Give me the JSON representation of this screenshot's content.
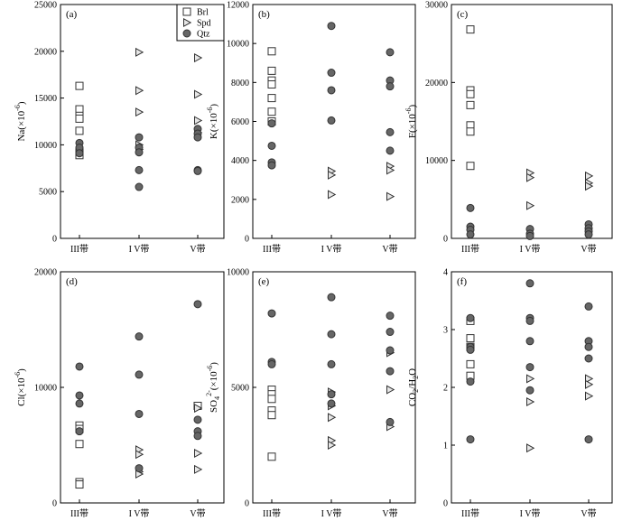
{
  "marker_colors": {
    "stroke": "#333333",
    "fill_square": "#ffffff",
    "fill_triangle": "#e6e6e6",
    "fill_circle": "#666666"
  },
  "legend": [
    {
      "marker": "square",
      "label": "Brl"
    },
    {
      "marker": "triangle",
      "label": "Spd"
    },
    {
      "marker": "circle",
      "label": "Qtz"
    }
  ],
  "chart_data": [
    {
      "type": "scatter",
      "panel_label": "(a)",
      "ylabel": {
        "main": "Na(×10",
        "sup": "-6",
        "tail": ")"
      },
      "categories": [
        "III带",
        "I V带",
        "V带"
      ],
      "ylim": [
        0,
        25000
      ],
      "yticks": [
        0,
        5000,
        10000,
        15000,
        20000,
        25000
      ],
      "series": [
        {
          "name": "Brl",
          "marker": "square",
          "points": [
            [
              0,
              16300
            ],
            [
              0,
              13800
            ],
            [
              0,
              13100
            ],
            [
              0,
              12800
            ],
            [
              0,
              11500
            ],
            [
              0,
              9200
            ],
            [
              0,
              8900
            ]
          ]
        },
        {
          "name": "Spd",
          "marker": "triangle",
          "points": [
            [
              1,
              19900
            ],
            [
              1,
              15800
            ],
            [
              1,
              13500
            ],
            [
              1,
              10000
            ],
            [
              1,
              9500
            ],
            [
              2,
              19300
            ],
            [
              2,
              15400
            ],
            [
              2,
              12600
            ],
            [
              2,
              11300
            ]
          ]
        },
        {
          "name": "Qtz",
          "marker": "circle",
          "points": [
            [
              0,
              10200
            ],
            [
              0,
              9700
            ],
            [
              0,
              9100
            ],
            [
              1,
              10800
            ],
            [
              1,
              9700
            ],
            [
              1,
              9200
            ],
            [
              1,
              7300
            ],
            [
              1,
              5500
            ],
            [
              2,
              11700
            ],
            [
              2,
              11200
            ],
            [
              2,
              10800
            ],
            [
              2,
              7300
            ],
            [
              2,
              7200
            ]
          ]
        }
      ]
    },
    {
      "type": "scatter",
      "panel_label": "(b)",
      "ylabel": {
        "main": "K(×10",
        "sup": "-6",
        "tail": ")"
      },
      "categories": [
        "III带",
        "I V带",
        "V带"
      ],
      "ylim": [
        0,
        12000
      ],
      "yticks": [
        0,
        2000,
        4000,
        6000,
        8000,
        10000,
        12000
      ],
      "series": [
        {
          "name": "Brl",
          "marker": "square",
          "points": [
            [
              0,
              9600
            ],
            [
              0,
              8600
            ],
            [
              0,
              8100
            ],
            [
              0,
              7900
            ],
            [
              0,
              7200
            ],
            [
              0,
              6500
            ],
            [
              0,
              6000
            ]
          ]
        },
        {
          "name": "Spd",
          "marker": "triangle",
          "points": [
            [
              1,
              3450
            ],
            [
              1,
              3250
            ],
            [
              1,
              2250
            ],
            [
              2,
              3700
            ],
            [
              2,
              3500
            ],
            [
              2,
              2150
            ]
          ]
        },
        {
          "name": "Qtz",
          "marker": "circle",
          "points": [
            [
              0,
              5900
            ],
            [
              0,
              4750
            ],
            [
              0,
              3900
            ],
            [
              0,
              3750
            ],
            [
              1,
              10900
            ],
            [
              1,
              8500
            ],
            [
              1,
              7600
            ],
            [
              1,
              6050
            ],
            [
              2,
              9550
            ],
            [
              2,
              8100
            ],
            [
              2,
              7800
            ],
            [
              2,
              5450
            ],
            [
              2,
              4500
            ]
          ]
        }
      ]
    },
    {
      "type": "scatter",
      "panel_label": "(c)",
      "ylabel": {
        "main": "F(×10",
        "sup": "-6",
        "tail": ")"
      },
      "categories": [
        "III带",
        "I V带",
        "V带"
      ],
      "ylim": [
        0,
        30000
      ],
      "yticks": [
        0,
        10000,
        20000,
        30000
      ],
      "series": [
        {
          "name": "Brl",
          "marker": "square",
          "points": [
            [
              0,
              26800
            ],
            [
              0,
              19000
            ],
            [
              0,
              18500
            ],
            [
              0,
              17100
            ],
            [
              0,
              14500
            ],
            [
              0,
              13700
            ],
            [
              0,
              9300
            ]
          ]
        },
        {
          "name": "Spd",
          "marker": "triangle",
          "points": [
            [
              1,
              8400
            ],
            [
              1,
              7800
            ],
            [
              1,
              4200
            ],
            [
              2,
              8000
            ],
            [
              2,
              7100
            ],
            [
              2,
              6700
            ]
          ]
        },
        {
          "name": "Qtz",
          "marker": "circle",
          "points": [
            [
              0,
              3900
            ],
            [
              0,
              1500
            ],
            [
              0,
              1100
            ],
            [
              0,
              500
            ],
            [
              1,
              1200
            ],
            [
              1,
              600
            ],
            [
              1,
              300
            ],
            [
              2,
              1800
            ],
            [
              2,
              1300
            ],
            [
              2,
              900
            ],
            [
              2,
              500
            ]
          ]
        }
      ]
    },
    {
      "type": "scatter",
      "panel_label": "(d)",
      "ylabel": {
        "main": "Cl(×10",
        "sup": "-6",
        "tail": ")"
      },
      "categories": [
        "III带",
        "I V带",
        "V带"
      ],
      "ylim": [
        0,
        20000
      ],
      "yticks": [
        0,
        10000,
        20000
      ],
      "series": [
        {
          "name": "Brl",
          "marker": "square",
          "points": [
            [
              0,
              6700
            ],
            [
              0,
              6400
            ],
            [
              0,
              5100
            ],
            [
              0,
              1800
            ],
            [
              0,
              1600
            ],
            [
              2,
              8400
            ]
          ]
        },
        {
          "name": "Spd",
          "marker": "triangle",
          "points": [
            [
              1,
              4600
            ],
            [
              1,
              4200
            ],
            [
              1,
              2700
            ],
            [
              1,
              2500
            ],
            [
              2,
              8200
            ],
            [
              2,
              4300
            ],
            [
              2,
              2900
            ]
          ]
        },
        {
          "name": "Qtz",
          "marker": "circle",
          "points": [
            [
              0,
              11800
            ],
            [
              0,
              9300
            ],
            [
              0,
              8600
            ],
            [
              0,
              6200
            ],
            [
              1,
              14400
            ],
            [
              1,
              11100
            ],
            [
              1,
              7700
            ],
            [
              1,
              3000
            ],
            [
              2,
              17200
            ],
            [
              2,
              7200
            ],
            [
              2,
              6200
            ],
            [
              2,
              5800
            ]
          ]
        }
      ]
    },
    {
      "type": "scatter",
      "panel_label": "(e)",
      "ylabel": {
        "main": "SO",
        "sub": "4",
        "sup": "2-",
        "tail": "(×10",
        "sup2": "-6",
        "tail2": ")"
      },
      "categories": [
        "III带",
        "I V带",
        "V带"
      ],
      "ylim": [
        0,
        10000
      ],
      "yticks": [
        0,
        5000,
        10000
      ],
      "series": [
        {
          "name": "Brl",
          "marker": "square",
          "points": [
            [
              0,
              4900
            ],
            [
              0,
              4700
            ],
            [
              0,
              4500
            ],
            [
              0,
              4000
            ],
            [
              0,
              3800
            ],
            [
              0,
              2000
            ]
          ]
        },
        {
          "name": "Spd",
          "marker": "triangle",
          "points": [
            [
              1,
              4800
            ],
            [
              1,
              4200
            ],
            [
              1,
              3700
            ],
            [
              1,
              2700
            ],
            [
              1,
              2500
            ],
            [
              2,
              6500
            ],
            [
              2,
              4900
            ],
            [
              2,
              3300
            ]
          ]
        },
        {
          "name": "Qtz",
          "marker": "circle",
          "points": [
            [
              0,
              8200
            ],
            [
              0,
              6100
            ],
            [
              0,
              6000
            ],
            [
              1,
              8900
            ],
            [
              1,
              7300
            ],
            [
              1,
              6000
            ],
            [
              1,
              4700
            ],
            [
              1,
              4300
            ],
            [
              2,
              8100
            ],
            [
              2,
              7400
            ],
            [
              2,
              6600
            ],
            [
              2,
              5700
            ],
            [
              2,
              3500
            ]
          ]
        }
      ]
    },
    {
      "type": "scatter",
      "panel_label": "(f)",
      "ylabel": {
        "main": "CO",
        "sub": "2",
        "tail": "/H",
        "sub2": "2",
        "tail2": "O"
      },
      "categories": [
        "III带",
        "I V带",
        "V带"
      ],
      "ylim": [
        0,
        4
      ],
      "yticks": [
        0,
        1,
        2,
        3,
        4
      ],
      "series": [
        {
          "name": "Brl",
          "marker": "square",
          "points": [
            [
              0,
              3.15
            ],
            [
              0,
              2.85
            ],
            [
              0,
              2.7
            ],
            [
              0,
              2.4
            ],
            [
              0,
              2.2
            ]
          ]
        },
        {
          "name": "Spd",
          "marker": "triangle",
          "points": [
            [
              1,
              2.15
            ],
            [
              1,
              1.75
            ],
            [
              1,
              0.95
            ],
            [
              2,
              2.15
            ],
            [
              2,
              2.05
            ],
            [
              2,
              1.85
            ]
          ]
        },
        {
          "name": "Qtz",
          "marker": "circle",
          "points": [
            [
              0,
              3.2
            ],
            [
              0,
              2.7
            ],
            [
              0,
              2.65
            ],
            [
              0,
              2.1
            ],
            [
              0,
              1.1
            ],
            [
              1,
              3.8
            ],
            [
              1,
              3.2
            ],
            [
              1,
              3.15
            ],
            [
              1,
              2.8
            ],
            [
              1,
              2.35
            ],
            [
              1,
              1.95
            ],
            [
              2,
              3.4
            ],
            [
              2,
              2.8
            ],
            [
              2,
              2.7
            ],
            [
              2,
              2.5
            ],
            [
              2,
              1.1
            ]
          ]
        }
      ]
    }
  ]
}
